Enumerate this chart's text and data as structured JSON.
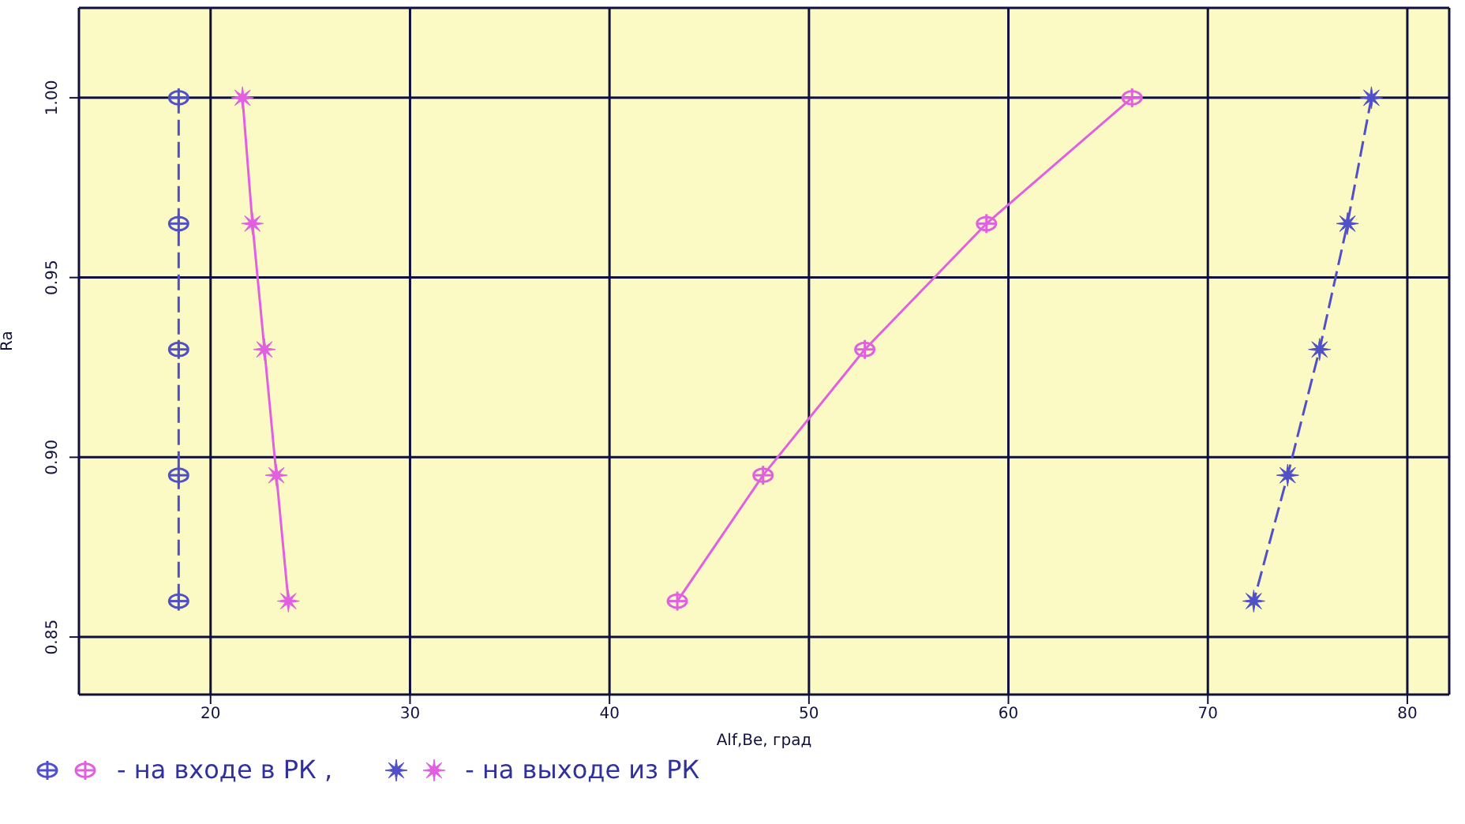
{
  "chart_data": {
    "type": "line",
    "xlabel": "Alf,Be, град",
    "ylabel": "Ra",
    "xlim": [
      13.4,
      82.1
    ],
    "xticks": [
      20,
      30,
      40,
      50,
      60,
      70,
      80
    ],
    "ylim": [
      0.834,
      1.025
    ],
    "yticks": [
      {
        "value": 0.85,
        "label": "0.85"
      },
      {
        "value": 0.9,
        "label": "0.90"
      },
      {
        "value": 0.95,
        "label": "0.95"
      },
      {
        "value": 1.0,
        "label": "1.00"
      }
    ],
    "grid": true,
    "series": [
      {
        "color": "#5050c8",
        "marker": "circle",
        "line_style": "dashed",
        "x": [
          18.4,
          18.4,
          18.4,
          18.4,
          18.4
        ],
        "values": [
          1.0,
          0.965,
          0.93,
          0.895,
          0.86
        ]
      },
      {
        "color": "#e060e0",
        "marker": "circle",
        "line_style": "solid",
        "x": [
          66.2,
          58.9,
          52.8,
          47.7,
          43.4
        ],
        "values": [
          1.0,
          0.965,
          0.93,
          0.895,
          0.86
        ]
      },
      {
        "color": "#5050c8",
        "marker": "star",
        "line_style": "dashed",
        "x": [
          78.2,
          77.0,
          75.6,
          74.0,
          72.3
        ],
        "values": [
          1.0,
          0.965,
          0.93,
          0.895,
          0.86
        ]
      },
      {
        "color": "#e060e0",
        "marker": "star",
        "line_style": "solid",
        "x": [
          21.6,
          22.1,
          22.7,
          23.3,
          23.9
        ],
        "values": [
          1.0,
          0.965,
          0.93,
          0.895,
          0.86
        ]
      }
    ],
    "annotations": [
      "- на входе в РК ,",
      "- на выходе из РК"
    ]
  }
}
